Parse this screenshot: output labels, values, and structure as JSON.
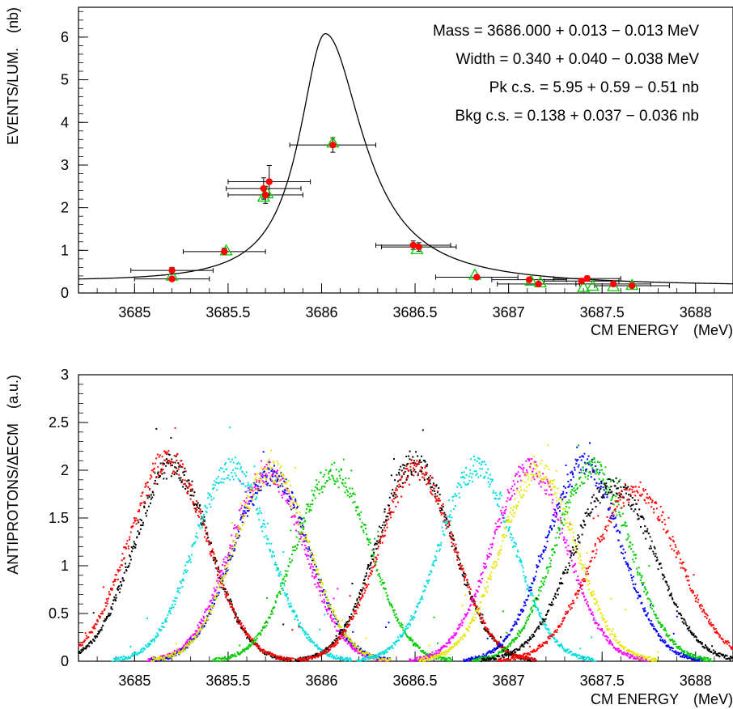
{
  "chart_data": [
    {
      "type": "scatter",
      "title": "",
      "xlabel_text": "CM ENERGY",
      "xlabel_unit": "(MeV)",
      "ylabel_text": "EVENTS/LUM.",
      "ylabel_unit": "(nb)",
      "xlim": [
        3684.7,
        3688.2
      ],
      "ylim": [
        0,
        6.7
      ],
      "x_ticks": [
        3685,
        3685.5,
        3686,
        3686.5,
        3687,
        3687.5,
        3688
      ],
      "x_tick_labels": [
        "3685",
        "3685.5",
        "3686",
        "3686.5",
        "3687",
        "3687.5",
        "3688"
      ],
      "y_ticks": [
        0,
        1,
        2,
        3,
        4,
        5,
        6
      ],
      "y_tick_labels": [
        "0",
        "1",
        "2",
        "3",
        "4",
        "5",
        "6"
      ],
      "annotations": [
        "Mass = 3686.000 + 0.013 − 0.013 MeV",
        "Width = 0.340 + 0.040 − 0.038 MeV",
        "Pk c.s. = 5.95 + 0.59 − 0.51 nb",
        "Bkg c.s. = 0.138 + 0.037 − 0.036 nb"
      ],
      "fit_curve": {
        "color": "#000000",
        "peak_x": 3686.02,
        "peak_y": 6.08,
        "background": 0.14,
        "half_width": 0.17,
        "tail_asymmetry": 1.45
      },
      "series": [
        {
          "marker": "filled-circle",
          "color": "#ff0000",
          "points": [
            {
              "x": 3685.2,
              "y": 0.53,
              "xerr": 0.22,
              "yerr": 0.07
            },
            {
              "x": 3685.2,
              "y": 0.33,
              "xerr": 0.2,
              "yerr": 0.05
            },
            {
              "x": 3685.48,
              "y": 0.97,
              "xerr": 0.22,
              "yerr": 0.08
            },
            {
              "x": 3685.69,
              "y": 2.45,
              "xerr": 0.2,
              "yerr": 0.25
            },
            {
              "x": 3685.7,
              "y": 2.3,
              "xerr": 0.2,
              "yerr": 0.2
            },
            {
              "x": 3685.72,
              "y": 2.61,
              "xerr": 0.22,
              "yerr": 0.38
            },
            {
              "x": 3686.06,
              "y": 3.47,
              "xerr": 0.23,
              "yerr": 0.17
            },
            {
              "x": 3686.49,
              "y": 1.12,
              "xerr": 0.2,
              "yerr": 0.1
            },
            {
              "x": 3686.52,
              "y": 1.08,
              "xerr": 0.2,
              "yerr": 0.1
            },
            {
              "x": 3686.83,
              "y": 0.37,
              "xerr": 0.22,
              "yerr": 0.04
            },
            {
              "x": 3687.11,
              "y": 0.31,
              "xerr": 0.2,
              "yerr": 0.05
            },
            {
              "x": 3687.16,
              "y": 0.21,
              "xerr": 0.22,
              "yerr": 0.05
            },
            {
              "x": 3687.39,
              "y": 0.28,
              "xerr": 0.2,
              "yerr": 0.05
            },
            {
              "x": 3687.42,
              "y": 0.34,
              "xerr": 0.18,
              "yerr": 0.06
            },
            {
              "x": 3687.56,
              "y": 0.21,
              "xerr": 0.2,
              "yerr": 0.05
            },
            {
              "x": 3687.66,
              "y": 0.17,
              "xerr": 0.2,
              "yerr": 0.05
            }
          ]
        },
        {
          "marker": "open-triangle",
          "color": "#00cc00",
          "points": [
            {
              "x": 3685.2,
              "y": 0.4
            },
            {
              "x": 3685.49,
              "y": 0.99
            },
            {
              "x": 3685.69,
              "y": 2.25
            },
            {
              "x": 3685.71,
              "y": 2.33
            },
            {
              "x": 3686.06,
              "y": 3.52
            },
            {
              "x": 3686.51,
              "y": 1.02
            },
            {
              "x": 3686.82,
              "y": 0.42
            },
            {
              "x": 3687.12,
              "y": 0.28
            },
            {
              "x": 3687.17,
              "y": 0.24
            },
            {
              "x": 3687.4,
              "y": 0.13
            },
            {
              "x": 3687.45,
              "y": 0.16
            },
            {
              "x": 3687.56,
              "y": 0.15
            },
            {
              "x": 3687.66,
              "y": 0.18
            }
          ]
        }
      ]
    },
    {
      "type": "scatter",
      "title": "",
      "xlabel_text": "CM ENERGY",
      "xlabel_unit": "(MeV)",
      "ylabel_text": "ANTIPROTONS/ΔECM",
      "ylabel_unit": "(a.u.)",
      "xlim": [
        3684.7,
        3688.2
      ],
      "ylim": [
        0,
        3
      ],
      "x_ticks": [
        3685,
        3685.5,
        3686,
        3686.5,
        3687,
        3687.5,
        3688
      ],
      "x_tick_labels": [
        "3685",
        "3685.5",
        "3686",
        "3686.5",
        "3687",
        "3687.5",
        "3688"
      ],
      "y_ticks": [
        0,
        0.5,
        1,
        1.5,
        2,
        2.5,
        3
      ],
      "y_tick_labels": [
        "0",
        "0.5",
        "1",
        "1.5",
        "2",
        "2.5",
        "3"
      ],
      "gaussian_dot_profiles": [
        {
          "color": "#000000",
          "center": 3685.2,
          "amplitude": 2.05,
          "sigma": 0.2
        },
        {
          "color": "#ff0000",
          "center": 3685.18,
          "amplitude": 2.1,
          "sigma": 0.21
        },
        {
          "color": "#00dddd",
          "center": 3685.52,
          "amplitude": 2.02,
          "sigma": 0.2
        },
        {
          "color": "#ff00ff",
          "center": 3685.71,
          "amplitude": 1.97,
          "sigma": 0.2
        },
        {
          "color": "#0000ff",
          "center": 3685.73,
          "amplitude": 1.96,
          "sigma": 0.2
        },
        {
          "color": "#e6e600",
          "center": 3685.73,
          "amplitude": 2.0,
          "sigma": 0.2
        },
        {
          "color": "#00cc00",
          "center": 3686.06,
          "amplitude": 1.97,
          "sigma": 0.2
        },
        {
          "color": "#000000",
          "center": 3686.5,
          "amplitude": 2.08,
          "sigma": 0.2
        },
        {
          "color": "#ff0000",
          "center": 3686.51,
          "amplitude": 2.0,
          "sigma": 0.2
        },
        {
          "color": "#00dddd",
          "center": 3686.83,
          "amplitude": 2.02,
          "sigma": 0.2
        },
        {
          "color": "#ff00ff",
          "center": 3687.11,
          "amplitude": 2.02,
          "sigma": 0.2
        },
        {
          "color": "#e6e600",
          "center": 3687.16,
          "amplitude": 2.0,
          "sigma": 0.2
        },
        {
          "color": "#0000ff",
          "center": 3687.4,
          "amplitude": 2.05,
          "sigma": 0.2
        },
        {
          "color": "#00cc00",
          "center": 3687.45,
          "amplitude": 2.02,
          "sigma": 0.2
        },
        {
          "color": "#000000",
          "center": 3687.56,
          "amplitude": 1.85,
          "sigma": 0.22
        },
        {
          "color": "#ff0000",
          "center": 3687.68,
          "amplitude": 1.8,
          "sigma": 0.23
        }
      ]
    }
  ]
}
